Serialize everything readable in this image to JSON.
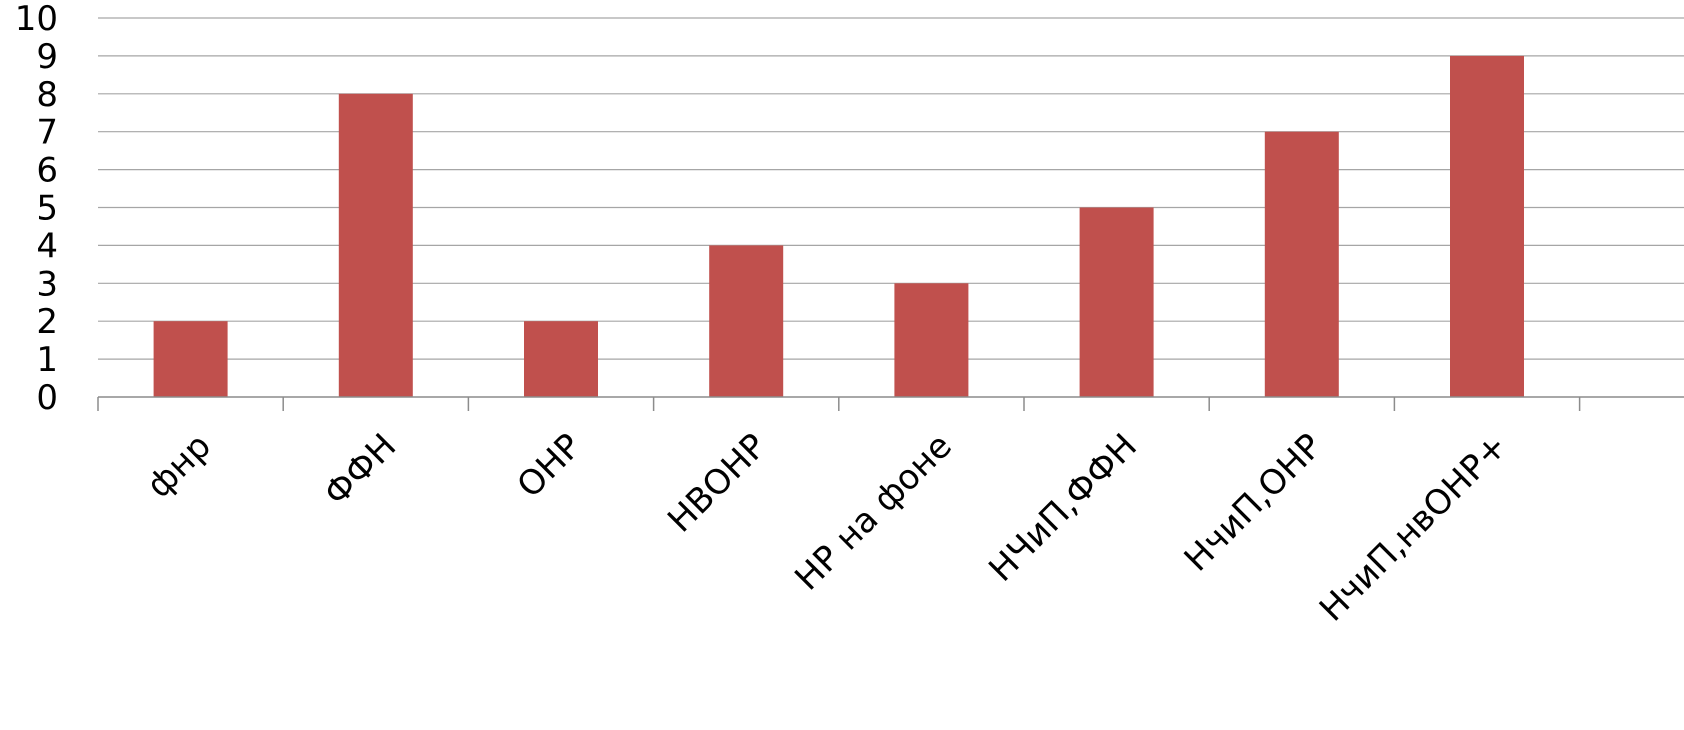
{
  "chart_data": {
    "type": "bar",
    "categories": [
      "фнр",
      "ФФН",
      "ОНР",
      "НВОНР",
      "НР на фоне",
      "НЧиП,ФФН",
      "НчиП,ОНР",
      "НчиП,нвОНР+"
    ],
    "values": [
      2,
      8,
      2,
      4,
      3,
      5,
      7,
      9
    ],
    "ylim": [
      0,
      10
    ],
    "yticks": [
      0,
      1,
      2,
      3,
      4,
      5,
      6,
      7,
      8,
      9,
      10
    ],
    "grid": true,
    "legend": "none",
    "colors": {
      "bar": "#c0504d"
    }
  }
}
